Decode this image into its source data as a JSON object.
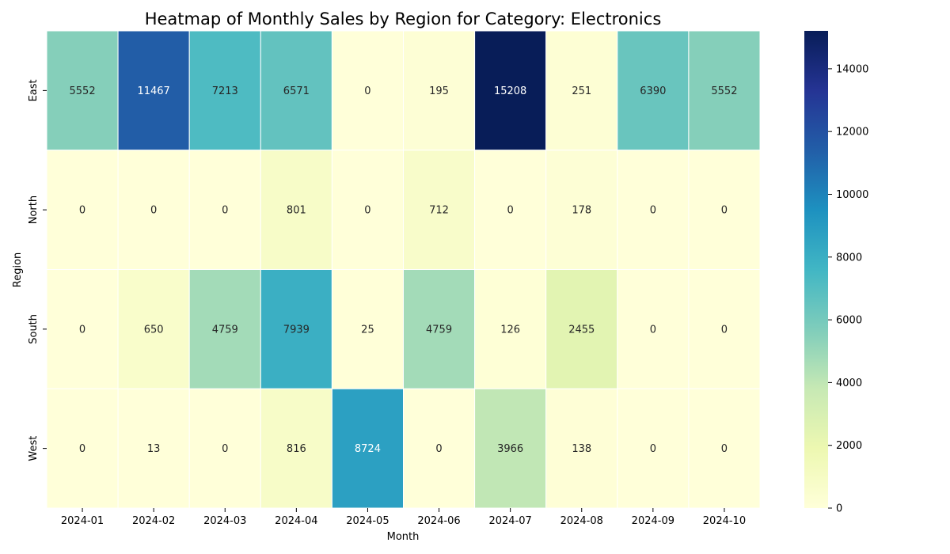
{
  "chart_data": {
    "type": "heatmap",
    "title": "Heatmap of Monthly Sales by Region for Category: Electronics",
    "xlabel": "Month",
    "ylabel": "Region",
    "columns": [
      "2024-01",
      "2024-02",
      "2024-03",
      "2024-04",
      "2024-05",
      "2024-06",
      "2024-07",
      "2024-08",
      "2024-09",
      "2024-10"
    ],
    "rows": [
      "East",
      "North",
      "South",
      "West"
    ],
    "values": [
      [
        5552,
        11467,
        7213,
        6571,
        0,
        195,
        15208,
        251,
        6390,
        5552
      ],
      [
        0,
        0,
        0,
        801,
        0,
        712,
        0,
        178,
        0,
        0
      ],
      [
        0,
        650,
        4759,
        7939,
        25,
        4759,
        126,
        2455,
        0,
        0
      ],
      [
        0,
        13,
        0,
        816,
        8724,
        0,
        3966,
        138,
        0,
        0
      ]
    ],
    "colorbar": {
      "colormap": "YlGnBu",
      "range": [
        0,
        15208
      ],
      "ticks": [
        0,
        2000,
        4000,
        6000,
        8000,
        10000,
        12000,
        14000
      ]
    }
  }
}
